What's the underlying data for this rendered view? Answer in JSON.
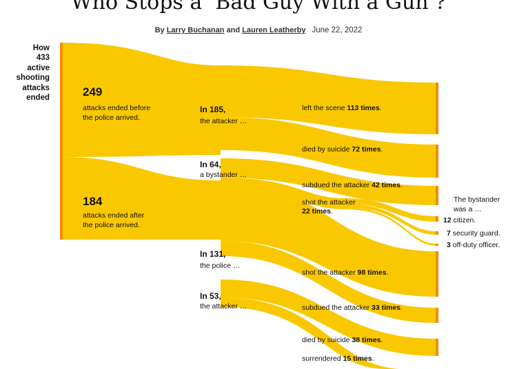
{
  "title": "Who Stops a ‘Bad Guy With a Gun’?",
  "byline": {
    "by": "By",
    "author1": "Larry Buchanan",
    "and": "and",
    "author2": "Lauren Leatherby",
    "date": "June 22, 2022"
  },
  "colors": {
    "flow": "#f9c800",
    "bar": "#f08c00"
  },
  "root": {
    "text_lines": [
      "How",
      "433",
      "active",
      "shooting",
      "attacks",
      "ended"
    ]
  },
  "before_police": {
    "count": "249",
    "text": "attacks ended before the police arrived."
  },
  "after_police": {
    "count": "184",
    "text": "attacks ended after the police arrived."
  },
  "nodes": {
    "attacker_before": {
      "count": "In 185,",
      "who": "the attacker …"
    },
    "bystander": {
      "count": "In 64,",
      "who": "a bystander …"
    },
    "police": {
      "count": "In 131,",
      "who": "the police …"
    },
    "attacker_after": {
      "count": "In 53,",
      "who": "the attacker …"
    }
  },
  "outcomes": [
    {
      "pre": "left the scene ",
      "num": "113 times",
      "post": "."
    },
    {
      "pre": "died by suicide ",
      "num": "72 times",
      "post": "."
    },
    {
      "pre": "subdued the attacker ",
      "num": "42 times",
      "post": "."
    },
    {
      "pre": "shot the attacker",
      "num": "22 times",
      "post": "."
    },
    {
      "pre": "shot the attacker ",
      "num": "98 times",
      "post": "."
    },
    {
      "pre": "subdued the attacker ",
      "num": "33 times",
      "post": "."
    },
    {
      "pre": "died by suicide ",
      "num": "38 times",
      "post": "."
    },
    {
      "pre": "surrendered ",
      "num": "15 times",
      "post": "."
    }
  ],
  "bystander_types": {
    "heading_line1": "The bystander",
    "heading_line2": "was a …",
    "items": [
      {
        "num": "12",
        "label": "citizen."
      },
      {
        "num": "7",
        "label": "security guard."
      },
      {
        "num": "3",
        "label": "off-duty officer."
      }
    ]
  }
}
